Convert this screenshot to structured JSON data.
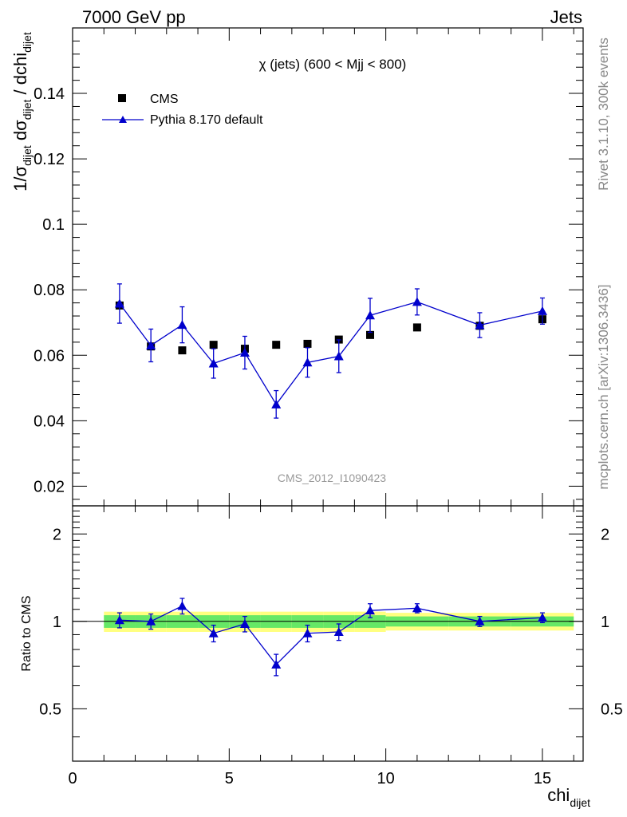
{
  "header": {
    "energy_label": "7000 GeV pp",
    "category_label": "Jets"
  },
  "side_labels": {
    "rivet": "Rivet 3.1.10,  300k events",
    "mcplots": "mcplots.cern.ch [arXiv:1306.3436]"
  },
  "chart_data": [
    {
      "type": "scatter",
      "title": "χ (jets) (600 < Mjj <  800)",
      "watermark": "CMS_2012_I1090423",
      "ylabel": "1/σdijet dσdijet / dchidijet",
      "xlim": [
        0,
        16.3
      ],
      "ylim": [
        0.014,
        0.16
      ],
      "y_ticks": [
        "0.02",
        "0.04",
        "0.06",
        "0.08",
        "0.1",
        "0.12",
        "0.14"
      ],
      "legend_placement": "top-left",
      "series": [
        {
          "name": "CMS",
          "marker": "square",
          "color": "#000000",
          "x": [
            1.5,
            2.5,
            3.5,
            4.5,
            5.5,
            6.5,
            7.5,
            8.5,
            9.5,
            11,
            13,
            15
          ],
          "y": [
            0.0752,
            0.0627,
            0.0615,
            0.0632,
            0.062,
            0.0632,
            0.0635,
            0.0648,
            0.0662,
            0.0685,
            0.069,
            0.071
          ]
        },
        {
          "name": "Pythia 8.170 default",
          "marker": "triangle",
          "line": true,
          "color": "#0000cc",
          "x": [
            1.5,
            2.5,
            3.5,
            4.5,
            5.5,
            6.5,
            7.5,
            8.5,
            9.5,
            11,
            13,
            15
          ],
          "y": [
            0.0758,
            0.063,
            0.0693,
            0.0575,
            0.0608,
            0.045,
            0.0578,
            0.0597,
            0.0722,
            0.0763,
            0.0692,
            0.0735
          ],
          "err": [
            0.006,
            0.005,
            0.0055,
            0.0045,
            0.005,
            0.0042,
            0.0045,
            0.005,
            0.0052,
            0.004,
            0.0038,
            0.004
          ]
        }
      ]
    },
    {
      "type": "scatter",
      "ylabel": "Ratio to CMS",
      "xlabel": "chidijet",
      "xlim": [
        0,
        16.3
      ],
      "ylim": [
        0.33,
        2.5
      ],
      "y_scale": "log",
      "y_ticks": [
        "0.5",
        "1",
        "2"
      ],
      "x_ticks": [
        "0",
        "5",
        "10",
        "15"
      ],
      "bands": [
        {
          "x": [
            1.0,
            2.0
          ],
          "inner": [
            0.95,
            1.05
          ],
          "outer": [
            0.92,
            1.08
          ]
        },
        {
          "x": [
            2.0,
            3.0
          ],
          "inner": [
            0.95,
            1.05
          ],
          "outer": [
            0.92,
            1.08
          ]
        },
        {
          "x": [
            3.0,
            4.0
          ],
          "inner": [
            0.95,
            1.05
          ],
          "outer": [
            0.92,
            1.08
          ]
        },
        {
          "x": [
            4.0,
            5.0
          ],
          "inner": [
            0.95,
            1.05
          ],
          "outer": [
            0.92,
            1.08
          ]
        },
        {
          "x": [
            5.0,
            6.0
          ],
          "inner": [
            0.95,
            1.05
          ],
          "outer": [
            0.92,
            1.08
          ]
        },
        {
          "x": [
            6.0,
            7.0
          ],
          "inner": [
            0.95,
            1.05
          ],
          "outer": [
            0.92,
            1.08
          ]
        },
        {
          "x": [
            7.0,
            8.0
          ],
          "inner": [
            0.95,
            1.05
          ],
          "outer": [
            0.92,
            1.08
          ]
        },
        {
          "x": [
            8.0,
            9.0
          ],
          "inner": [
            0.95,
            1.05
          ],
          "outer": [
            0.92,
            1.08
          ]
        },
        {
          "x": [
            9.0,
            10.0
          ],
          "inner": [
            0.95,
            1.05
          ],
          "outer": [
            0.92,
            1.08
          ]
        },
        {
          "x": [
            10.0,
            12.0
          ],
          "inner": [
            0.96,
            1.04
          ],
          "outer": [
            0.93,
            1.07
          ]
        },
        {
          "x": [
            12.0,
            14.0
          ],
          "inner": [
            0.96,
            1.04
          ],
          "outer": [
            0.93,
            1.07
          ]
        },
        {
          "x": [
            14.0,
            16.0
          ],
          "inner": [
            0.96,
            1.04
          ],
          "outer": [
            0.93,
            1.07
          ]
        }
      ],
      "series": [
        {
          "name": "Pythia 8.170 default",
          "marker": "triangle",
          "line": true,
          "color": "#0000cc",
          "x": [
            1.5,
            2.5,
            3.5,
            4.5,
            5.5,
            6.5,
            7.5,
            8.5,
            9.5,
            11,
            13,
            15
          ],
          "y": [
            1.01,
            1.0,
            1.13,
            0.91,
            0.98,
            0.71,
            0.91,
            0.92,
            1.09,
            1.11,
            1.0,
            1.03
          ],
          "err": [
            0.06,
            0.06,
            0.07,
            0.06,
            0.06,
            0.06,
            0.06,
            0.06,
            0.06,
            0.04,
            0.04,
            0.04
          ]
        }
      ]
    }
  ],
  "colors": {
    "band_inner": "#66e866",
    "band_outer": "#ffff80",
    "axis": "#000000",
    "mc": "#0000cc",
    "side_text": "#888888",
    "watermark_text": "#999999"
  }
}
